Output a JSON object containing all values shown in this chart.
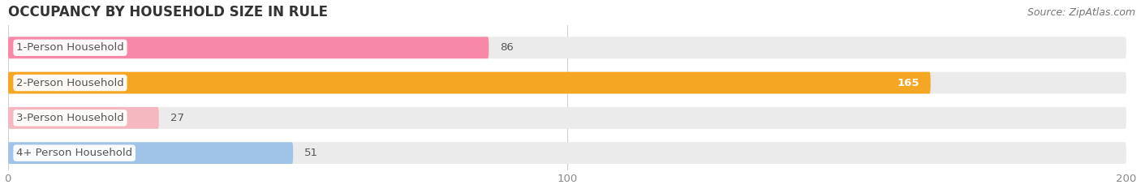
{
  "title": "OCCUPANCY BY HOUSEHOLD SIZE IN RULE",
  "source": "Source: ZipAtlas.com",
  "categories": [
    "1-Person Household",
    "2-Person Household",
    "3-Person Household",
    "4+ Person Household"
  ],
  "values": [
    86,
    165,
    27,
    51
  ],
  "bar_colors": [
    "#f888a8",
    "#f5a623",
    "#f5b8c0",
    "#a0c4e8"
  ],
  "track_color": "#ebebeb",
  "xlim": [
    0,
    200
  ],
  "xticks": [
    0,
    100,
    200
  ],
  "background_color": "#ffffff",
  "title_fontsize": 12,
  "label_fontsize": 9.5,
  "value_fontsize": 9.5,
  "source_fontsize": 9,
  "bar_height": 0.62,
  "label_text_color": "#555555",
  "value_color_inside": "#ffffff",
  "value_color_outside": "#555555",
  "grid_color": "#d0d0d0",
  "tick_color": "#888888"
}
